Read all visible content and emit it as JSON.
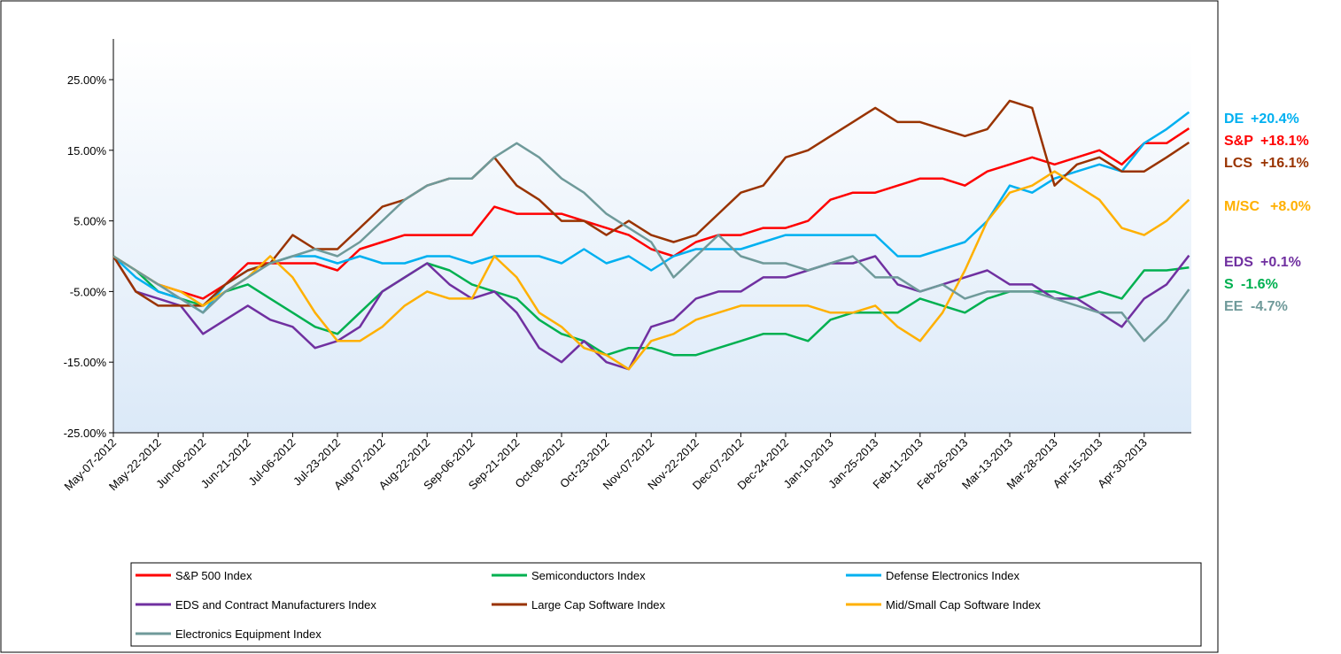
{
  "chart_data": {
    "type": "line",
    "categories": [
      "May-07-2012",
      null,
      "May-22-2012",
      null,
      "Jun-06-2012",
      null,
      "Jun-21-2012",
      null,
      "Jul-06-2012",
      null,
      "Jul-23-2012",
      null,
      "Aug-07-2012",
      null,
      "Aug-22-2012",
      null,
      "Sep-06-2012",
      null,
      "Sep-21-2012",
      null,
      "Oct-08-2012",
      null,
      "Oct-23-2012",
      null,
      "Nov-07-2012",
      null,
      "Nov-22-2012",
      null,
      "Dec-07-2012",
      null,
      "Dec-24-2012",
      null,
      "Jan-10-2013",
      null,
      "Jan-25-2013",
      null,
      "Feb-11-2013",
      null,
      "Feb-26-2013",
      null,
      "Mar-13-2013",
      null,
      "Mar-28-2013",
      null,
      "Apr-15-2013",
      null,
      "Apr-30-2013",
      null,
      null
    ],
    "ylim": [
      -25,
      25
    ],
    "yticks": [
      {
        "value": -25,
        "label": "-25.00%"
      },
      {
        "value": -15,
        "label": "-15.00%"
      },
      {
        "value": -5,
        "label": "-5.00%"
      },
      {
        "value": 5,
        "label": "5.00%"
      },
      {
        "value": 15,
        "label": "15.00%"
      },
      {
        "value": 25,
        "label": "25.00%"
      }
    ],
    "legend": "bottom",
    "series": [
      {
        "name": "S&P 500 Index",
        "short": "S&P",
        "end_label": "+18.1%",
        "color": "#ff0000",
        "values": [
          0,
          -2,
          -4,
          -5,
          -6,
          -4,
          -1,
          -1,
          -1,
          -1,
          -2,
          1,
          2,
          3,
          3,
          3,
          3,
          7,
          6,
          6,
          6,
          5,
          4,
          3,
          1,
          0,
          2,
          3,
          3,
          4,
          4,
          5,
          8,
          9,
          9,
          10,
          11,
          11,
          10,
          12,
          13,
          14,
          13,
          14,
          15,
          13,
          16,
          16,
          18.1
        ]
      },
      {
        "name": "Semiconductors Index",
        "short": "S",
        "end_label": "-1.6%",
        "color": "#00b050",
        "values": [
          0,
          -2,
          -5,
          -6,
          -7,
          -5,
          -4,
          -6,
          -8,
          -10,
          -11,
          -8,
          -5,
          -3,
          -1,
          -2,
          -4,
          -5,
          -6,
          -9,
          -11,
          -12,
          -14,
          -13,
          -13,
          -14,
          -14,
          -13,
          -12,
          -11,
          -11,
          -12,
          -9,
          -8,
          -8,
          -8,
          -6,
          -7,
          -8,
          -6,
          -5,
          -5,
          -5,
          -6,
          -5,
          -6,
          -2,
          -2,
          -1.6
        ]
      },
      {
        "name": "Defense Electronics Index",
        "short": "DE",
        "end_label": "+20.4%",
        "color": "#00b0f0",
        "values": [
          0,
          -3,
          -5,
          -6,
          -8,
          -4,
          -2,
          -1,
          0,
          0,
          -1,
          0,
          -1,
          -1,
          0,
          0,
          -1,
          0,
          0,
          0,
          -1,
          1,
          -1,
          0,
          -2,
          0,
          1,
          1,
          1,
          2,
          3,
          3,
          3,
          3,
          3,
          0,
          0,
          1,
          2,
          5,
          10,
          9,
          11,
          12,
          13,
          12,
          16,
          18,
          20.4
        ]
      },
      {
        "name": "EDS and Contract Manufacturers Index",
        "short": "EDS",
        "end_label": "+0.1%",
        "color": "#7030a0",
        "values": [
          0,
          -5,
          -6,
          -7,
          -11,
          -9,
          -7,
          -9,
          -10,
          -13,
          -12,
          -10,
          -5,
          -3,
          -1,
          -4,
          -6,
          -5,
          -8,
          -13,
          -15,
          -12,
          -15,
          -16,
          -10,
          -9,
          -6,
          -5,
          -5,
          -3,
          -3,
          -2,
          -1,
          -1,
          0,
          -4,
          -5,
          -4,
          -3,
          -2,
          -4,
          -4,
          -6,
          -6,
          -8,
          -10,
          -6,
          -4,
          0.1
        ]
      },
      {
        "name": "Large Cap Software Index",
        "short": "LCS",
        "end_label": "+16.1%",
        "color": "#993300",
        "values": [
          0,
          -5,
          -7,
          -7,
          -7,
          -4,
          -2,
          -1,
          3,
          1,
          1,
          4,
          7,
          8,
          10,
          11,
          11,
          14,
          10,
          8,
          5,
          5,
          3,
          5,
          3,
          2,
          3,
          6,
          9,
          10,
          14,
          15,
          17,
          19,
          21,
          19,
          19,
          18,
          17,
          18,
          22,
          21,
          10,
          13,
          14,
          12,
          12,
          14,
          16.1
        ]
      },
      {
        "name": "Mid/Small Cap Software Index",
        "short": "M/SC",
        "end_label": "+8.0%",
        "color": "#ffb000",
        "values": [
          0,
          -2,
          -4,
          -5,
          -7,
          -5,
          -3,
          0,
          -3,
          -8,
          -12,
          -12,
          -10,
          -7,
          -5,
          -6,
          -6,
          0,
          -3,
          -8,
          -10,
          -13,
          -14,
          -16,
          -12,
          -11,
          -9,
          -8,
          -7,
          -7,
          -7,
          -7,
          -8,
          -8,
          -7,
          -10,
          -12,
          -8,
          -2,
          5,
          9,
          10,
          12,
          10,
          8,
          4,
          3,
          5,
          8.0
        ]
      },
      {
        "name": "Electronics Equipment Index",
        "short": "EE",
        "end_label": "-4.7%",
        "color": "#6f9a9a",
        "values": [
          0,
          -2,
          -4,
          -6,
          -8,
          -5,
          -3,
          -1,
          0,
          1,
          0,
          2,
          5,
          8,
          10,
          11,
          11,
          14,
          16,
          14,
          11,
          9,
          6,
          4,
          2,
          -3,
          0,
          3,
          0,
          -1,
          -1,
          -2,
          -1,
          0,
          -3,
          -3,
          -5,
          -4,
          -6,
          -5,
          -5,
          -5,
          -6,
          -7,
          -8,
          -8,
          -12,
          -9,
          -4.7
        ]
      }
    ]
  }
}
